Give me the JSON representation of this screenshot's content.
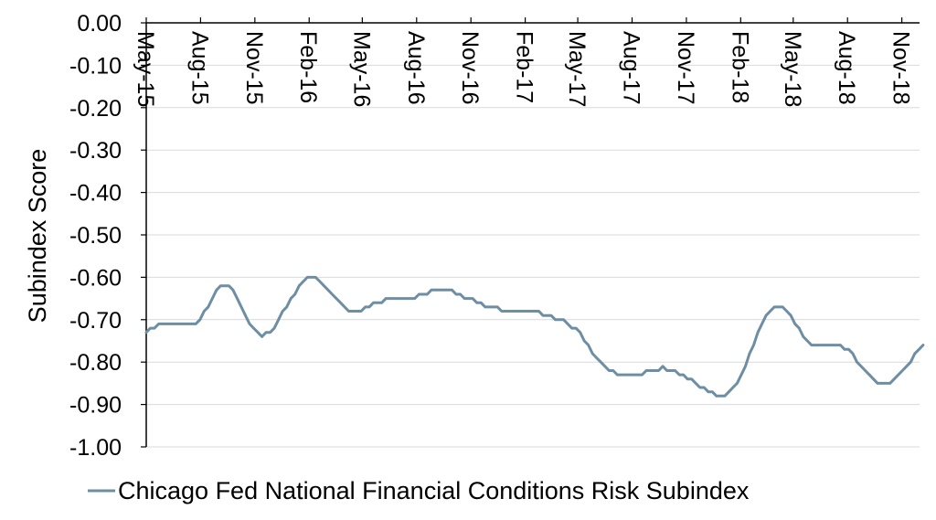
{
  "chart_data": {
    "type": "line",
    "title": "",
    "xlabel": "",
    "ylabel": "Subindex Score",
    "ylim": [
      -1.0,
      0.0
    ],
    "yticks": [
      0.0,
      -0.1,
      -0.2,
      -0.3,
      -0.4,
      -0.5,
      -0.6,
      -0.7,
      -0.8,
      -0.9,
      -1.0
    ],
    "ytick_labels": [
      "0.00",
      "-0.10",
      "-0.20",
      "-0.30",
      "-0.40",
      "-0.50",
      "-0.60",
      "-0.70",
      "-0.80",
      "-0.90",
      "-1.00"
    ],
    "xlim": [
      "2015-05-01",
      "2018-12-01"
    ],
    "xticks": [
      "2015-05-01",
      "2015-08-01",
      "2015-11-01",
      "2016-02-01",
      "2016-05-01",
      "2016-08-01",
      "2016-11-01",
      "2017-02-01",
      "2017-05-01",
      "2017-08-01",
      "2017-11-01",
      "2018-02-01",
      "2018-05-01",
      "2018-08-01",
      "2018-11-01"
    ],
    "xtick_labels": [
      "May-15",
      "Aug-15",
      "Nov-15",
      "Feb-16",
      "May-16",
      "Aug-16",
      "Nov-16",
      "Feb-17",
      "May-17",
      "Aug-17",
      "Nov-17",
      "Feb-18",
      "May-18",
      "Aug-18",
      "Nov-18"
    ],
    "grid": "horizontal",
    "legend_position": "bottom",
    "colors": {
      "series": "#6e8ea3",
      "axis": "#000000",
      "grid": "#d9d9d9"
    },
    "series": [
      {
        "name": "Chicago Fed National Financial Conditions Risk Subindex",
        "points": [
          [
            "2015-05-01",
            -0.73
          ],
          [
            "2015-05-08",
            -0.72
          ],
          [
            "2015-05-15",
            -0.72
          ],
          [
            "2015-05-22",
            -0.71
          ],
          [
            "2015-05-29",
            -0.71
          ],
          [
            "2015-06-05",
            -0.71
          ],
          [
            "2015-06-12",
            -0.71
          ],
          [
            "2015-06-19",
            -0.71
          ],
          [
            "2015-06-26",
            -0.71
          ],
          [
            "2015-07-03",
            -0.71
          ],
          [
            "2015-07-10",
            -0.71
          ],
          [
            "2015-07-17",
            -0.71
          ],
          [
            "2015-07-24",
            -0.71
          ],
          [
            "2015-07-31",
            -0.7
          ],
          [
            "2015-08-07",
            -0.68
          ],
          [
            "2015-08-14",
            -0.67
          ],
          [
            "2015-08-21",
            -0.65
          ],
          [
            "2015-08-28",
            -0.63
          ],
          [
            "2015-09-04",
            -0.62
          ],
          [
            "2015-09-11",
            -0.62
          ],
          [
            "2015-09-18",
            -0.62
          ],
          [
            "2015-09-25",
            -0.63
          ],
          [
            "2015-10-02",
            -0.65
          ],
          [
            "2015-10-09",
            -0.67
          ],
          [
            "2015-10-16",
            -0.69
          ],
          [
            "2015-10-23",
            -0.71
          ],
          [
            "2015-10-30",
            -0.72
          ],
          [
            "2015-11-06",
            -0.73
          ],
          [
            "2015-11-13",
            -0.74
          ],
          [
            "2015-11-20",
            -0.73
          ],
          [
            "2015-11-27",
            -0.73
          ],
          [
            "2015-12-04",
            -0.72
          ],
          [
            "2015-12-11",
            -0.7
          ],
          [
            "2015-12-18",
            -0.68
          ],
          [
            "2015-12-25",
            -0.67
          ],
          [
            "2016-01-01",
            -0.65
          ],
          [
            "2016-01-08",
            -0.64
          ],
          [
            "2016-01-15",
            -0.62
          ],
          [
            "2016-01-22",
            -0.61
          ],
          [
            "2016-01-29",
            -0.6
          ],
          [
            "2016-02-05",
            -0.6
          ],
          [
            "2016-02-12",
            -0.6
          ],
          [
            "2016-02-19",
            -0.61
          ],
          [
            "2016-02-26",
            -0.62
          ],
          [
            "2016-03-04",
            -0.63
          ],
          [
            "2016-03-11",
            -0.64
          ],
          [
            "2016-03-18",
            -0.65
          ],
          [
            "2016-03-25",
            -0.66
          ],
          [
            "2016-04-01",
            -0.67
          ],
          [
            "2016-04-08",
            -0.68
          ],
          [
            "2016-04-15",
            -0.68
          ],
          [
            "2016-04-22",
            -0.68
          ],
          [
            "2016-04-29",
            -0.68
          ],
          [
            "2016-05-06",
            -0.67
          ],
          [
            "2016-05-13",
            -0.67
          ],
          [
            "2016-05-20",
            -0.66
          ],
          [
            "2016-05-27",
            -0.66
          ],
          [
            "2016-06-03",
            -0.66
          ],
          [
            "2016-06-10",
            -0.65
          ],
          [
            "2016-06-17",
            -0.65
          ],
          [
            "2016-06-24",
            -0.65
          ],
          [
            "2016-07-01",
            -0.65
          ],
          [
            "2016-07-08",
            -0.65
          ],
          [
            "2016-07-15",
            -0.65
          ],
          [
            "2016-07-22",
            -0.65
          ],
          [
            "2016-07-29",
            -0.65
          ],
          [
            "2016-08-05",
            -0.64
          ],
          [
            "2016-08-12",
            -0.64
          ],
          [
            "2016-08-19",
            -0.64
          ],
          [
            "2016-08-26",
            -0.63
          ],
          [
            "2016-09-02",
            -0.63
          ],
          [
            "2016-09-09",
            -0.63
          ],
          [
            "2016-09-16",
            -0.63
          ],
          [
            "2016-09-23",
            -0.63
          ],
          [
            "2016-09-30",
            -0.63
          ],
          [
            "2016-10-07",
            -0.64
          ],
          [
            "2016-10-14",
            -0.64
          ],
          [
            "2016-10-21",
            -0.65
          ],
          [
            "2016-10-28",
            -0.65
          ],
          [
            "2016-11-04",
            -0.65
          ],
          [
            "2016-11-11",
            -0.66
          ],
          [
            "2016-11-18",
            -0.66
          ],
          [
            "2016-11-25",
            -0.67
          ],
          [
            "2016-12-02",
            -0.67
          ],
          [
            "2016-12-09",
            -0.67
          ],
          [
            "2016-12-16",
            -0.67
          ],
          [
            "2016-12-23",
            -0.68
          ],
          [
            "2016-12-30",
            -0.68
          ],
          [
            "2017-01-06",
            -0.68
          ],
          [
            "2017-01-13",
            -0.68
          ],
          [
            "2017-01-20",
            -0.68
          ],
          [
            "2017-01-27",
            -0.68
          ],
          [
            "2017-02-03",
            -0.68
          ],
          [
            "2017-02-10",
            -0.68
          ],
          [
            "2017-02-17",
            -0.68
          ],
          [
            "2017-02-24",
            -0.68
          ],
          [
            "2017-03-03",
            -0.69
          ],
          [
            "2017-03-10",
            -0.69
          ],
          [
            "2017-03-17",
            -0.69
          ],
          [
            "2017-03-24",
            -0.7
          ],
          [
            "2017-03-31",
            -0.7
          ],
          [
            "2017-04-07",
            -0.7
          ],
          [
            "2017-04-14",
            -0.71
          ],
          [
            "2017-04-21",
            -0.72
          ],
          [
            "2017-04-28",
            -0.72
          ],
          [
            "2017-05-05",
            -0.73
          ],
          [
            "2017-05-12",
            -0.75
          ],
          [
            "2017-05-19",
            -0.76
          ],
          [
            "2017-05-26",
            -0.78
          ],
          [
            "2017-06-02",
            -0.79
          ],
          [
            "2017-06-09",
            -0.8
          ],
          [
            "2017-06-16",
            -0.81
          ],
          [
            "2017-06-23",
            -0.82
          ],
          [
            "2017-06-30",
            -0.82
          ],
          [
            "2017-07-07",
            -0.83
          ],
          [
            "2017-07-14",
            -0.83
          ],
          [
            "2017-07-21",
            -0.83
          ],
          [
            "2017-07-28",
            -0.83
          ],
          [
            "2017-08-04",
            -0.83
          ],
          [
            "2017-08-11",
            -0.83
          ],
          [
            "2017-08-18",
            -0.83
          ],
          [
            "2017-08-25",
            -0.82
          ],
          [
            "2017-09-01",
            -0.82
          ],
          [
            "2017-09-08",
            -0.82
          ],
          [
            "2017-09-15",
            -0.82
          ],
          [
            "2017-09-22",
            -0.81
          ],
          [
            "2017-09-29",
            -0.82
          ],
          [
            "2017-10-06",
            -0.82
          ],
          [
            "2017-10-13",
            -0.82
          ],
          [
            "2017-10-20",
            -0.83
          ],
          [
            "2017-10-27",
            -0.83
          ],
          [
            "2017-11-03",
            -0.84
          ],
          [
            "2017-11-10",
            -0.84
          ],
          [
            "2017-11-17",
            -0.85
          ],
          [
            "2017-11-24",
            -0.86
          ],
          [
            "2017-12-01",
            -0.86
          ],
          [
            "2017-12-08",
            -0.87
          ],
          [
            "2017-12-15",
            -0.87
          ],
          [
            "2017-12-22",
            -0.88
          ],
          [
            "2017-12-29",
            -0.88
          ],
          [
            "2018-01-05",
            -0.88
          ],
          [
            "2018-01-12",
            -0.87
          ],
          [
            "2018-01-19",
            -0.86
          ],
          [
            "2018-01-26",
            -0.85
          ],
          [
            "2018-02-02",
            -0.83
          ],
          [
            "2018-02-09",
            -0.81
          ],
          [
            "2018-02-16",
            -0.78
          ],
          [
            "2018-02-23",
            -0.76
          ],
          [
            "2018-03-02",
            -0.73
          ],
          [
            "2018-03-09",
            -0.71
          ],
          [
            "2018-03-16",
            -0.69
          ],
          [
            "2018-03-23",
            -0.68
          ],
          [
            "2018-03-30",
            -0.67
          ],
          [
            "2018-04-06",
            -0.67
          ],
          [
            "2018-04-13",
            -0.67
          ],
          [
            "2018-04-20",
            -0.68
          ],
          [
            "2018-04-27",
            -0.69
          ],
          [
            "2018-05-04",
            -0.71
          ],
          [
            "2018-05-11",
            -0.72
          ],
          [
            "2018-05-18",
            -0.74
          ],
          [
            "2018-05-25",
            -0.75
          ],
          [
            "2018-06-01",
            -0.76
          ],
          [
            "2018-06-08",
            -0.76
          ],
          [
            "2018-06-15",
            -0.76
          ],
          [
            "2018-06-22",
            -0.76
          ],
          [
            "2018-06-29",
            -0.76
          ],
          [
            "2018-07-06",
            -0.76
          ],
          [
            "2018-07-13",
            -0.76
          ],
          [
            "2018-07-20",
            -0.76
          ],
          [
            "2018-07-27",
            -0.77
          ],
          [
            "2018-08-03",
            -0.77
          ],
          [
            "2018-08-10",
            -0.78
          ],
          [
            "2018-08-17",
            -0.8
          ],
          [
            "2018-08-24",
            -0.81
          ],
          [
            "2018-08-31",
            -0.82
          ],
          [
            "2018-09-07",
            -0.83
          ],
          [
            "2018-09-14",
            -0.84
          ],
          [
            "2018-09-21",
            -0.85
          ],
          [
            "2018-09-28",
            -0.85
          ],
          [
            "2018-10-05",
            -0.85
          ],
          [
            "2018-10-12",
            -0.85
          ],
          [
            "2018-10-19",
            -0.84
          ],
          [
            "2018-10-26",
            -0.83
          ],
          [
            "2018-11-02",
            -0.82
          ],
          [
            "2018-11-09",
            -0.81
          ],
          [
            "2018-11-16",
            -0.8
          ],
          [
            "2018-11-23",
            -0.78
          ],
          [
            "2018-11-30",
            -0.77
          ],
          [
            "2018-12-07",
            -0.76
          ]
        ]
      }
    ]
  }
}
